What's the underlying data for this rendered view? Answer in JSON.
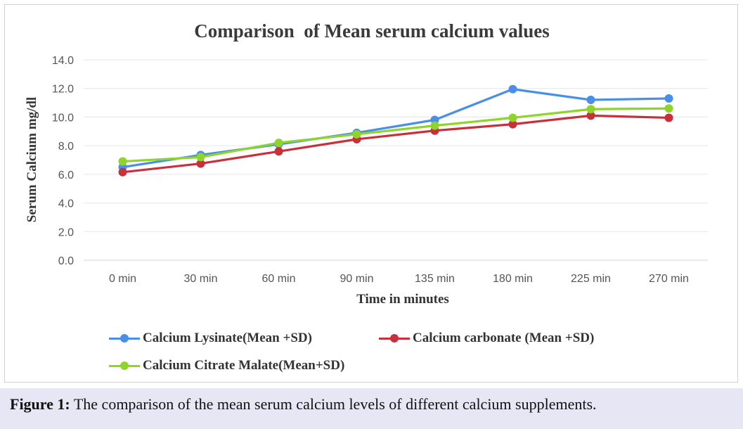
{
  "colors": {
    "series": [
      "#4a8fe7",
      "#c8303c",
      "#8fd42a"
    ],
    "grid": "#e6e6e6",
    "axis_text": "#555555",
    "title_text": "#3a3a3a",
    "caption_bg": "#e6e6f5"
  },
  "chart_data": {
    "type": "line",
    "title": "Comparison  of Mean serum calcium values",
    "xlabel": "Time in minutes",
    "ylabel": "Serum Calcium mg/dl",
    "categories": [
      "0 min",
      "30 min",
      "60 min",
      "90 min",
      "135 min",
      "180 min",
      "225 min",
      "270 min"
    ],
    "ylim": [
      0,
      14
    ],
    "yticks": [
      "0.0",
      "2.0",
      "4.0",
      "6.0",
      "8.0",
      "10.0",
      "12.0",
      "14.0"
    ],
    "grid": true,
    "legend_position": "bottom-left",
    "series": [
      {
        "name": "Calcium Lysinate(Mean +SD)",
        "values": [
          6.5,
          7.35,
          8.1,
          8.9,
          9.8,
          11.95,
          11.2,
          11.3
        ]
      },
      {
        "name": "Calcium carbonate (Mean +SD)",
        "values": [
          6.15,
          6.75,
          7.6,
          8.45,
          9.05,
          9.5,
          10.1,
          9.95
        ]
      },
      {
        "name": "Calcium Citrate Malate(Mean+SD)",
        "values": [
          6.9,
          7.2,
          8.2,
          8.8,
          9.4,
          9.95,
          10.55,
          10.6
        ]
      }
    ]
  },
  "caption": {
    "label": "Figure 1:",
    "text": " The comparison of the mean serum calcium levels of different calcium supplements."
  }
}
